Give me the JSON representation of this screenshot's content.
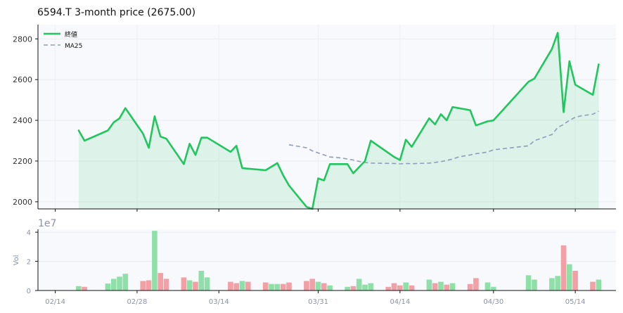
{
  "chart_data": {
    "type": "line",
    "title": "6594.T  3-month price (2675.00)",
    "legend": {
      "position": "top-left",
      "entries": [
        "終値",
        "MA25"
      ]
    },
    "price_ylim": [
      1965,
      2870
    ],
    "price_yticks": [
      2000,
      2200,
      2400,
      2600,
      2800
    ],
    "volume_ylim": [
      0,
      42000000
    ],
    "volume_yticks": [
      0,
      2,
      4
    ],
    "volume_scale_label": "1e7",
    "volume_ylabel": "Vol",
    "xlim": [
      -2,
      87
    ],
    "xticks": [
      {
        "label": "02/14",
        "x": 0
      },
      {
        "label": "02/28",
        "x": 14
      },
      {
        "label": "03/14",
        "x": 28
      },
      {
        "label": "03/31",
        "x": 45
      },
      {
        "label": "04/14",
        "x": 59
      },
      {
        "label": "04/30",
        "x": 75
      },
      {
        "label": "05/14",
        "x": 89
      }
    ],
    "close_series": {
      "name": "終値",
      "color": "#22c55e",
      "points": [
        [
          4,
          2350
        ],
        [
          5,
          2300
        ],
        [
          9,
          2350
        ],
        [
          10,
          2390
        ],
        [
          11,
          2410
        ],
        [
          12,
          2460
        ],
        [
          15,
          2335
        ],
        [
          16,
          2265
        ],
        [
          17,
          2420
        ],
        [
          18,
          2320
        ],
        [
          19,
          2310
        ],
        [
          22,
          2185
        ],
        [
          23,
          2285
        ],
        [
          24,
          2230
        ],
        [
          25,
          2315
        ],
        [
          26,
          2315
        ],
        [
          30,
          2245
        ],
        [
          31,
          2275
        ],
        [
          32,
          2165
        ],
        [
          36,
          2155
        ],
        [
          38,
          2190
        ],
        [
          39,
          2130
        ],
        [
          40,
          2080
        ],
        [
          43,
          1975
        ],
        [
          44,
          1965
        ],
        [
          45,
          2115
        ],
        [
          46,
          2105
        ],
        [
          47,
          2185
        ],
        [
          50,
          2185
        ],
        [
          51,
          2140
        ],
        [
          53,
          2200
        ],
        [
          54,
          2300
        ],
        [
          58,
          2220
        ],
        [
          59,
          2205
        ],
        [
          60,
          2305
        ],
        [
          61,
          2270
        ],
        [
          64,
          2410
        ],
        [
          65,
          2380
        ],
        [
          66,
          2430
        ],
        [
          67,
          2400
        ],
        [
          68,
          2465
        ],
        [
          71,
          2450
        ],
        [
          72,
          2375
        ],
        [
          74,
          2395
        ],
        [
          75,
          2400
        ],
        [
          81,
          2590
        ],
        [
          82,
          2605
        ],
        [
          85,
          2750
        ],
        [
          86,
          2830
        ],
        [
          87,
          2440
        ],
        [
          88,
          2690
        ],
        [
          89,
          2575
        ],
        [
          92,
          2525
        ],
        [
          93,
          2675
        ]
      ]
    },
    "ma_series": {
      "name": "MA25",
      "color": "#8f9db8",
      "points": [
        [
          40,
          2280
        ],
        [
          43,
          2265
        ],
        [
          44,
          2250
        ],
        [
          46,
          2230
        ],
        [
          47,
          2220
        ],
        [
          49,
          2215
        ],
        [
          50,
          2210
        ],
        [
          51,
          2205
        ],
        [
          52,
          2198
        ],
        [
          53,
          2193
        ],
        [
          54,
          2190
        ],
        [
          58,
          2188
        ],
        [
          59,
          2186
        ],
        [
          60,
          2188
        ],
        [
          61,
          2187
        ],
        [
          64,
          2190
        ],
        [
          65,
          2193
        ],
        [
          66,
          2197
        ],
        [
          67,
          2203
        ],
        [
          68,
          2210
        ],
        [
          69,
          2220
        ],
        [
          70,
          2225
        ],
        [
          71,
          2230
        ],
        [
          72,
          2236
        ],
        [
          74,
          2244
        ],
        [
          75,
          2255
        ],
        [
          81,
          2275
        ],
        [
          82,
          2300
        ],
        [
          85,
          2330
        ],
        [
          86,
          2365
        ],
        [
          87,
          2380
        ],
        [
          88,
          2400
        ],
        [
          89,
          2415
        ],
        [
          90,
          2422
        ],
        [
          92,
          2430
        ],
        [
          93,
          2445
        ]
      ]
    },
    "volume_series": {
      "name": "Vol",
      "up_color": "#8fe0a8",
      "down_color": "#f2a0a6",
      "bars": [
        {
          "x": 4,
          "v": 3000000,
          "dir": "up"
        },
        {
          "x": 5,
          "v": 2500000,
          "dir": "down"
        },
        {
          "x": 9,
          "v": 4800000,
          "dir": "up"
        },
        {
          "x": 10,
          "v": 8000000,
          "dir": "up"
        },
        {
          "x": 11,
          "v": 9500000,
          "dir": "up"
        },
        {
          "x": 12,
          "v": 11500000,
          "dir": "up"
        },
        {
          "x": 15,
          "v": 6500000,
          "dir": "down"
        },
        {
          "x": 16,
          "v": 7000000,
          "dir": "down"
        },
        {
          "x": 17,
          "v": 41000000,
          "dir": "up"
        },
        {
          "x": 18,
          "v": 12000000,
          "dir": "down"
        },
        {
          "x": 19,
          "v": 8000000,
          "dir": "down"
        },
        {
          "x": 22,
          "v": 9000000,
          "dir": "down"
        },
        {
          "x": 23,
          "v": 7000000,
          "dir": "up"
        },
        {
          "x": 24,
          "v": 6000000,
          "dir": "down"
        },
        {
          "x": 25,
          "v": 13500000,
          "dir": "up"
        },
        {
          "x": 26,
          "v": 9000000,
          "dir": "up"
        },
        {
          "x": 30,
          "v": 6000000,
          "dir": "down"
        },
        {
          "x": 31,
          "v": 5000000,
          "dir": "down"
        },
        {
          "x": 32,
          "v": 6500000,
          "dir": "up"
        },
        {
          "x": 33,
          "v": 6000000,
          "dir": "down"
        },
        {
          "x": 36,
          "v": 5500000,
          "dir": "down"
        },
        {
          "x": 37,
          "v": 4500000,
          "dir": "up"
        },
        {
          "x": 38,
          "v": 4500000,
          "dir": "up"
        },
        {
          "x": 39,
          "v": 4500000,
          "dir": "down"
        },
        {
          "x": 40,
          "v": 5500000,
          "dir": "down"
        },
        {
          "x": 43,
          "v": 6500000,
          "dir": "down"
        },
        {
          "x": 44,
          "v": 8000000,
          "dir": "down"
        },
        {
          "x": 45,
          "v": 6000000,
          "dir": "up"
        },
        {
          "x": 46,
          "v": 5000000,
          "dir": "down"
        },
        {
          "x": 47,
          "v": 3500000,
          "dir": "up"
        },
        {
          "x": 50,
          "v": 2500000,
          "dir": "up"
        },
        {
          "x": 51,
          "v": 3000000,
          "dir": "down"
        },
        {
          "x": 52,
          "v": 8000000,
          "dir": "up"
        },
        {
          "x": 53,
          "v": 4000000,
          "dir": "up"
        },
        {
          "x": 54,
          "v": 5000000,
          "dir": "up"
        },
        {
          "x": 57,
          "v": 2500000,
          "dir": "down"
        },
        {
          "x": 58,
          "v": 5000000,
          "dir": "down"
        },
        {
          "x": 59,
          "v": 3500000,
          "dir": "down"
        },
        {
          "x": 60,
          "v": 5500000,
          "dir": "up"
        },
        {
          "x": 61,
          "v": 3500000,
          "dir": "down"
        },
        {
          "x": 64,
          "v": 7500000,
          "dir": "up"
        },
        {
          "x": 65,
          "v": 5000000,
          "dir": "down"
        },
        {
          "x": 66,
          "v": 6000000,
          "dir": "up"
        },
        {
          "x": 67,
          "v": 4000000,
          "dir": "down"
        },
        {
          "x": 68,
          "v": 5000000,
          "dir": "up"
        },
        {
          "x": 71,
          "v": 4500000,
          "dir": "down"
        },
        {
          "x": 72,
          "v": 8500000,
          "dir": "down"
        },
        {
          "x": 74,
          "v": 5500000,
          "dir": "up"
        },
        {
          "x": 75,
          "v": 2500000,
          "dir": "up"
        },
        {
          "x": 81,
          "v": 10500000,
          "dir": "up"
        },
        {
          "x": 82,
          "v": 7500000,
          "dir": "up"
        },
        {
          "x": 85,
          "v": 8500000,
          "dir": "up"
        },
        {
          "x": 86,
          "v": 10000000,
          "dir": "up"
        },
        {
          "x": 87,
          "v": 31000000,
          "dir": "down"
        },
        {
          "x": 88,
          "v": 18000000,
          "dir": "up"
        },
        {
          "x": 89,
          "v": 13500000,
          "dir": "down"
        },
        {
          "x": 92,
          "v": 6000000,
          "dir": "down"
        },
        {
          "x": 93,
          "v": 7500000,
          "dir": "up"
        }
      ]
    }
  }
}
